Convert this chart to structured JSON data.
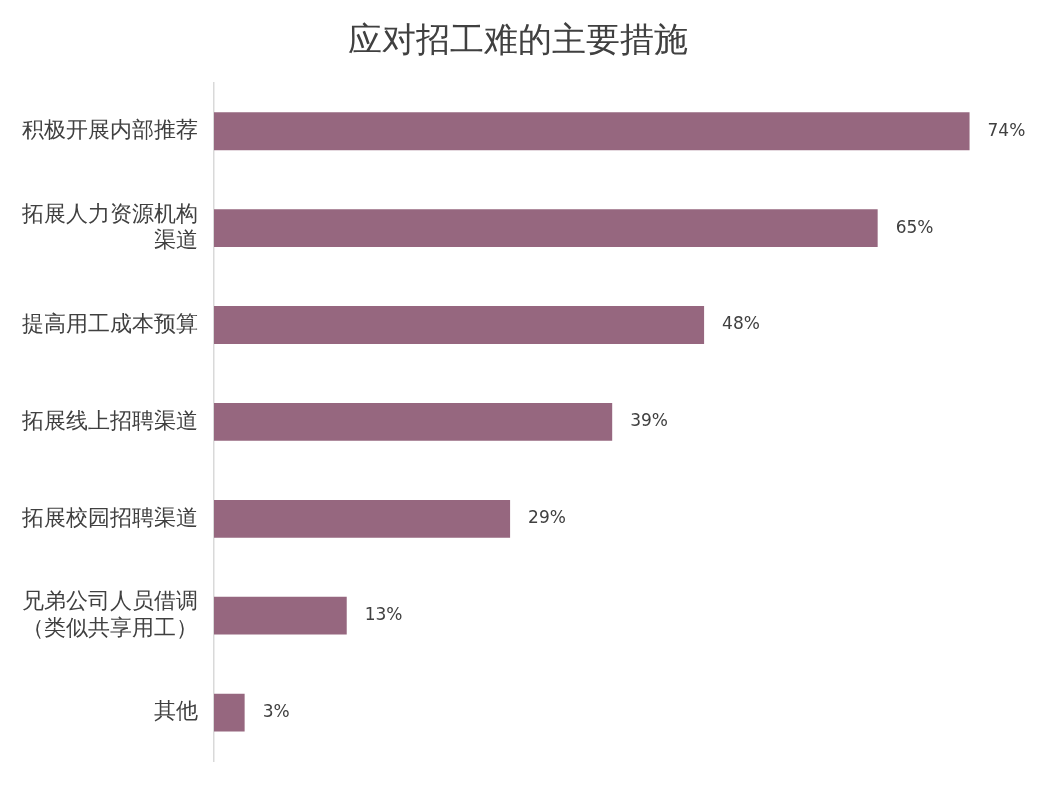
{
  "chart_data": {
    "type": "bar",
    "orientation": "horizontal",
    "title": "应对招工难的主要措施",
    "categories": [
      "积极开展内部推荐",
      "拓展人力资源机构渠道",
      "提高用工成本预算",
      "拓展线上招聘渠道",
      "拓展校园招聘渠道",
      "兄弟公司人员借调（类似共享用工）",
      "其他"
    ],
    "values": [
      74,
      65,
      48,
      39,
      29,
      13,
      3
    ],
    "value_labels": [
      "74%",
      "65%",
      "48%",
      "39%",
      "29%",
      "13%",
      "3%"
    ],
    "color": "#96677f"
  }
}
